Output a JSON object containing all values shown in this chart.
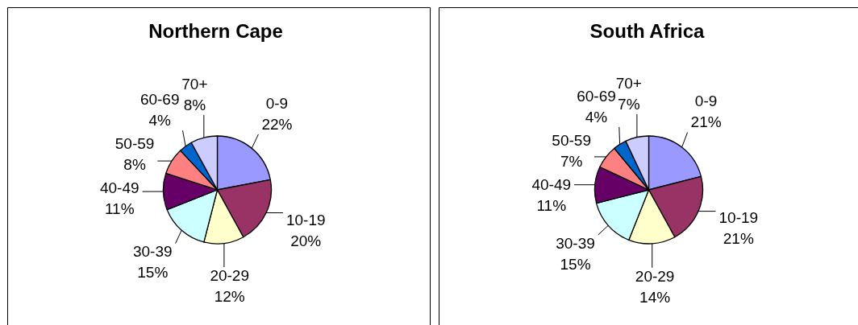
{
  "chart_data": [
    {
      "type": "pie",
      "title": "Northern Cape",
      "categories": [
        "0-9",
        "10-19",
        "20-29",
        "30-39",
        "40-49",
        "50-59",
        "60-69",
        "70+"
      ],
      "values": [
        22,
        20,
        12,
        15,
        11,
        8,
        4,
        8
      ],
      "colors": [
        "#9999ff",
        "#993366",
        "#ffffcc",
        "#ccffff",
        "#660066",
        "#ff8080",
        "#0066cc",
        "#ccccff"
      ],
      "value_labels": [
        "22%",
        "20%",
        "12%",
        "15%",
        "11%",
        "8%",
        "4%",
        "8%"
      ]
    },
    {
      "type": "pie",
      "title": "South Africa",
      "categories": [
        "0-9",
        "10-19",
        "20-29",
        "30-39",
        "40-49",
        "50-59",
        "60-69",
        "70+"
      ],
      "values": [
        21,
        21,
        14,
        15,
        11,
        7,
        4,
        7
      ],
      "colors": [
        "#9999ff",
        "#993366",
        "#ffffcc",
        "#ccffff",
        "#660066",
        "#ff8080",
        "#0066cc",
        "#ccccff"
      ],
      "value_labels": [
        "21%",
        "21%",
        "14%",
        "15%",
        "11%",
        "7%",
        "4%",
        "7%"
      ]
    }
  ]
}
